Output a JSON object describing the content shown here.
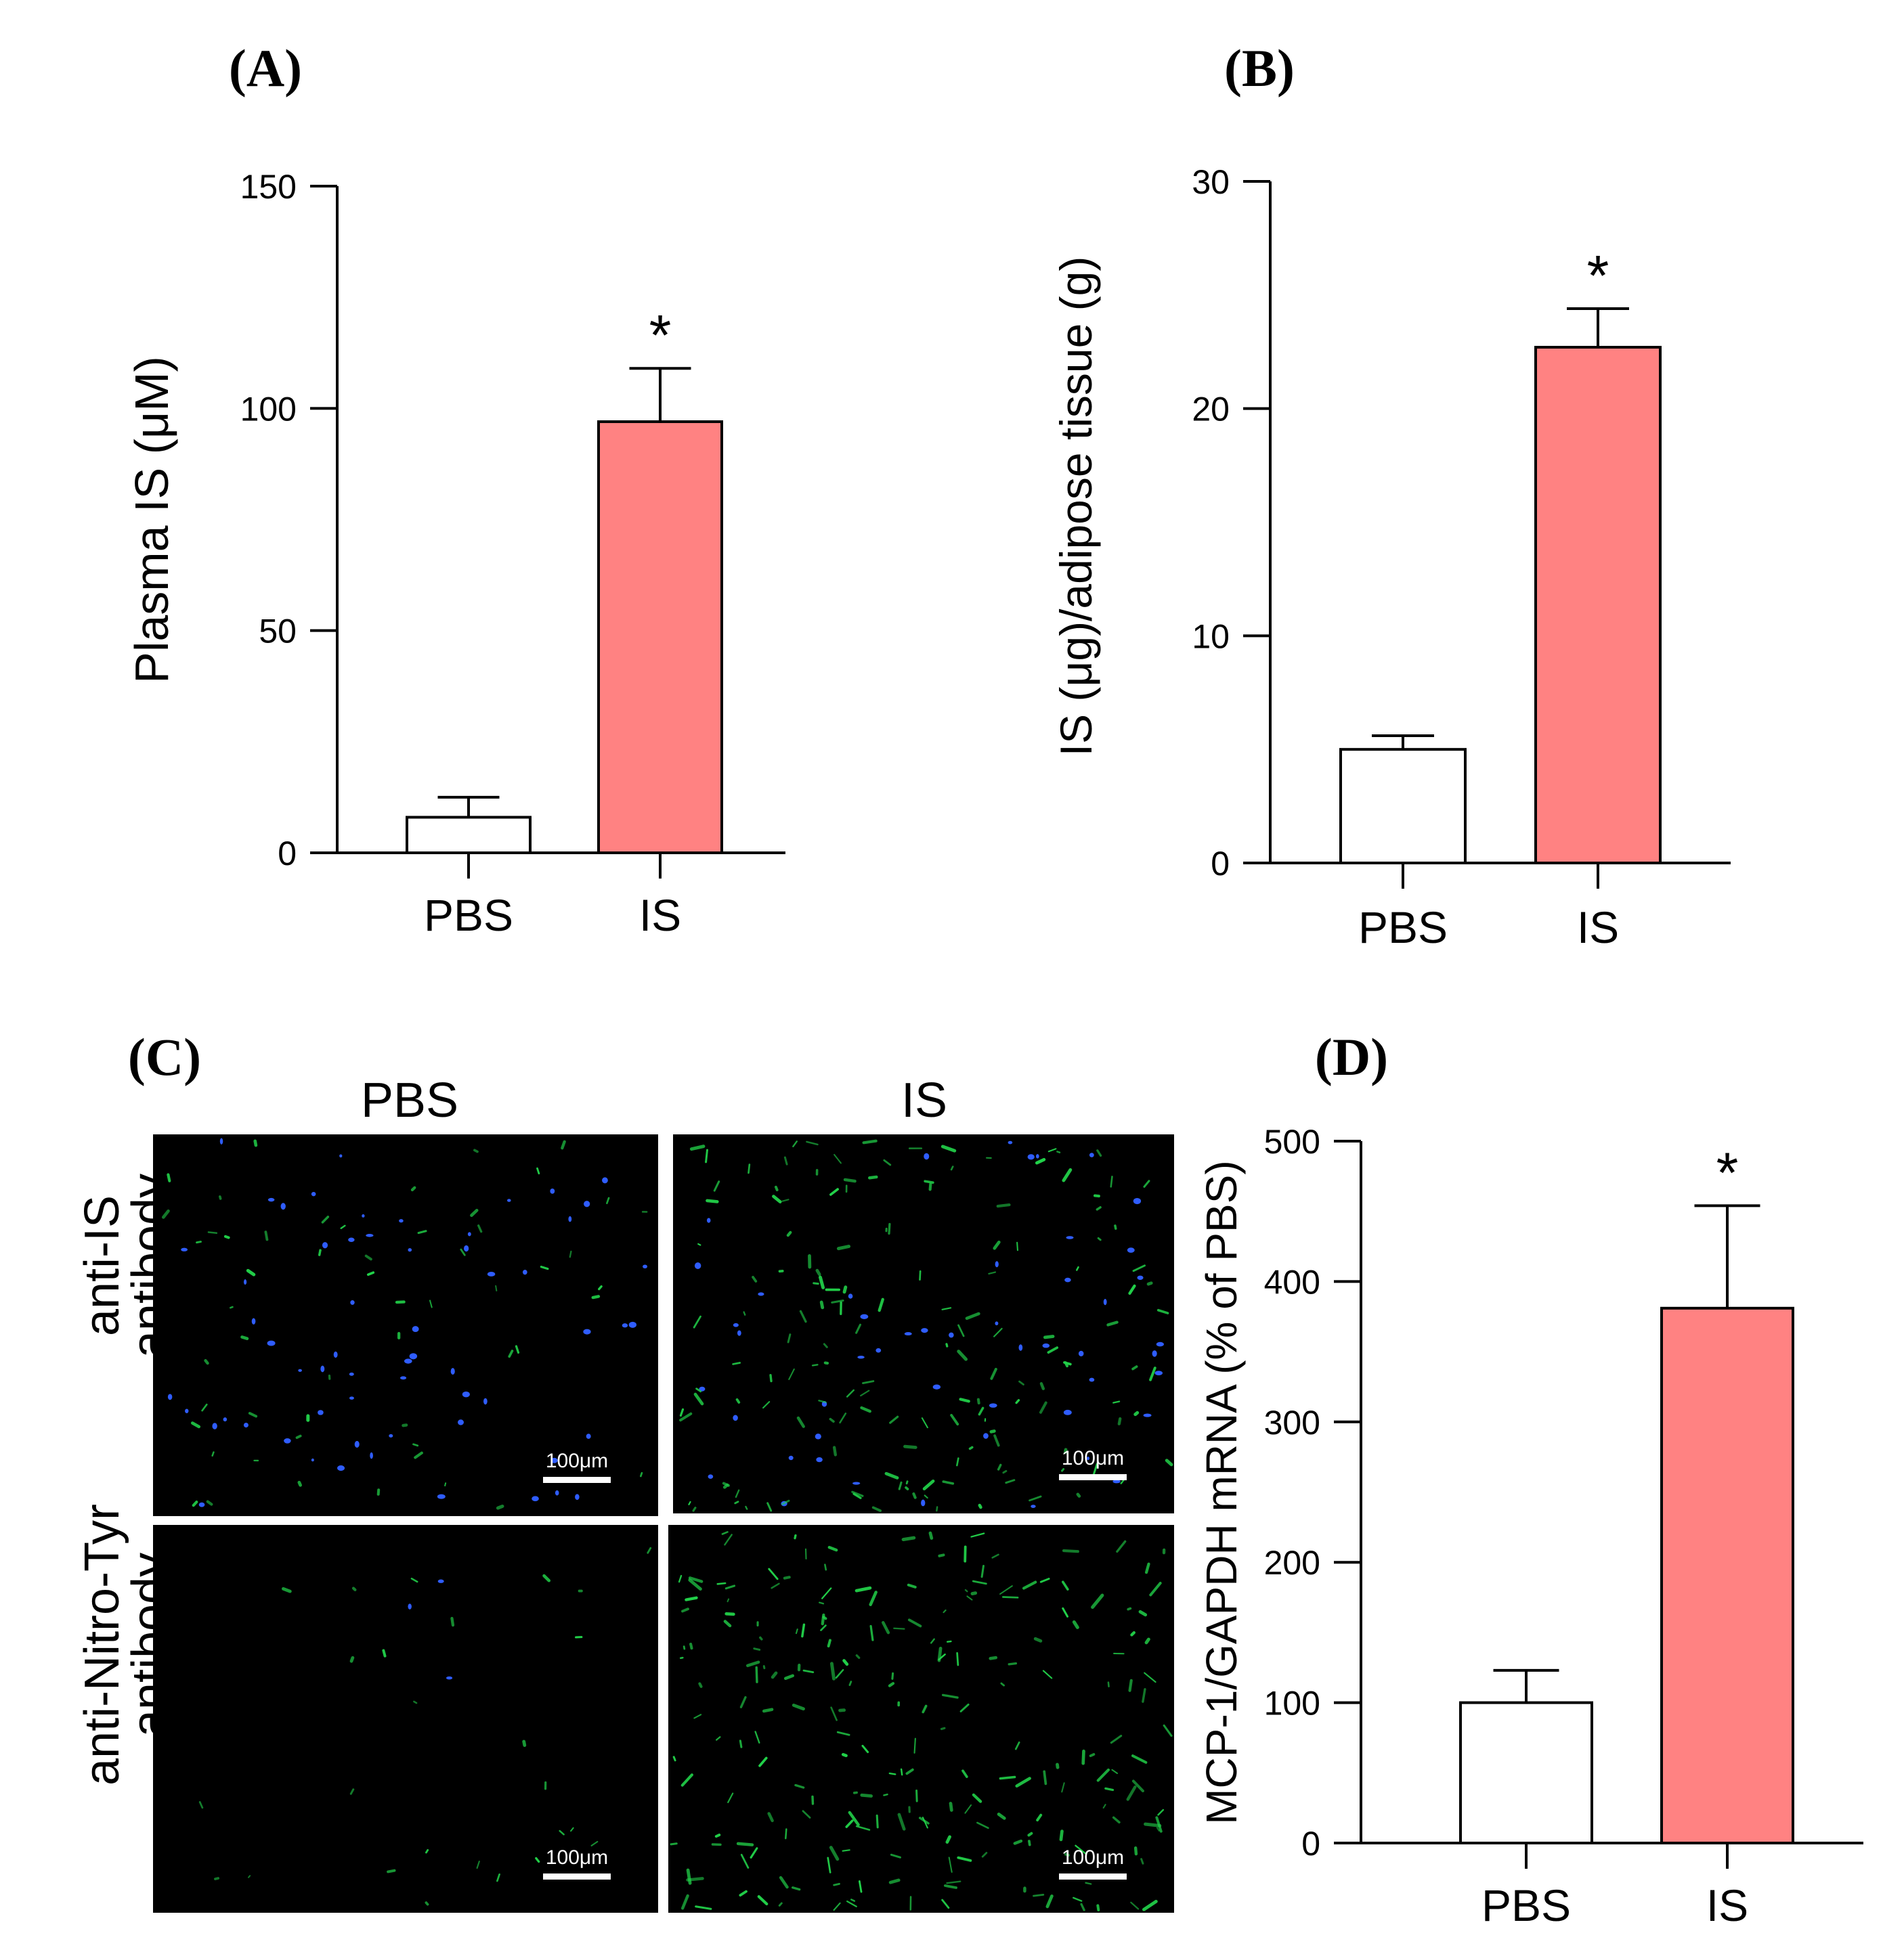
{
  "colors": {
    "pbs_bar": "#ffffff",
    "is_bar": "#ff8282",
    "axis": "#000000",
    "micrograph_bg": "#000000",
    "blue_stain": "#2f5dff",
    "green_stain": "#22d24a"
  },
  "panel_labels": {
    "a": "(A)",
    "b": "(B)",
    "c": "(C)",
    "d": "(D)"
  },
  "chart_data": [
    {
      "id": "A",
      "type": "bar",
      "categories": [
        "PBS",
        "IS"
      ],
      "values": [
        8,
        97
      ],
      "errors": [
        4.5,
        12
      ],
      "significance": [
        "",
        "*"
      ],
      "title": "",
      "xlabel": "",
      "ylabel": "Plasma  IS (μM)",
      "ylim": [
        0,
        150
      ],
      "yticks": [
        0,
        50,
        100,
        150
      ],
      "ytick_labels": [
        "0",
        "50",
        "100",
        "150"
      ],
      "bar_colors": [
        "#ffffff",
        "#ff8282"
      ],
      "grid": false,
      "legend": "none"
    },
    {
      "id": "B",
      "type": "bar",
      "categories": [
        "PBS",
        "IS"
      ],
      "values": [
        5,
        22.7
      ],
      "errors": [
        0.6,
        1.7
      ],
      "significance": [
        "",
        "*"
      ],
      "title": "",
      "xlabel": "",
      "ylabel": "IS (μg)/adipose tissue (g)",
      "ylim": [
        0,
        30
      ],
      "yticks": [
        0,
        10,
        20,
        30
      ],
      "ytick_labels": [
        "0",
        "10",
        "20",
        "30"
      ],
      "bar_colors": [
        "#ffffff",
        "#ff8282"
      ],
      "grid": false,
      "legend": "none"
    },
    {
      "id": "D",
      "type": "bar",
      "categories": [
        "PBS",
        "IS"
      ],
      "values": [
        100,
        381
      ],
      "errors": [
        23,
        73
      ],
      "significance": [
        "",
        "*"
      ],
      "title": "",
      "xlabel": "",
      "ylabel": "MCP-1/GAPDH mRNA (% of PBS)",
      "ylim": [
        0,
        500
      ],
      "yticks": [
        0,
        100,
        200,
        300,
        400,
        500
      ],
      "ytick_labels": [
        "0",
        "100",
        "200",
        "300",
        "400",
        "500"
      ],
      "bar_colors": [
        "#ffffff",
        "#ff8282"
      ],
      "grid": false,
      "legend": "none"
    }
  ],
  "micrographs": {
    "column_headers": [
      "PBS",
      "IS"
    ],
    "row_labels": [
      [
        "anti-IS",
        "antibody"
      ],
      [
        "anti-Nitro-Tyr",
        "antibody"
      ]
    ],
    "scale_bar_label": "100μm",
    "tiles": [
      {
        "row": 0,
        "col": 0,
        "blue_density": 0.55,
        "green_density": 0.25
      },
      {
        "row": 0,
        "col": 1,
        "blue_density": 0.45,
        "green_density": 0.7
      },
      {
        "row": 1,
        "col": 0,
        "blue_density": 0.03,
        "green_density": 0.12
      },
      {
        "row": 1,
        "col": 1,
        "blue_density": 0.0,
        "green_density": 1.0
      }
    ]
  }
}
